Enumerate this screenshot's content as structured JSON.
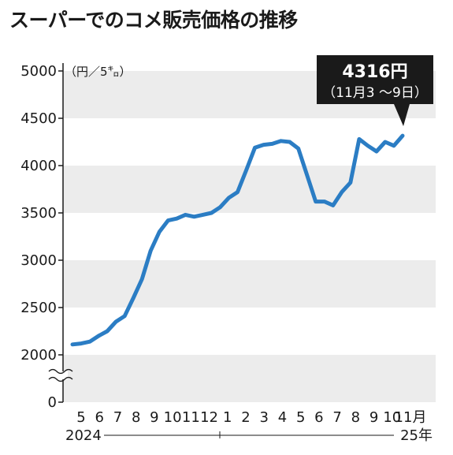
{
  "chart_data": {
    "type": "line",
    "title": "スーパーでのコメ販売価格の推移",
    "unit_label": "（円／5㌔）",
    "ylim": [
      0,
      5000
    ],
    "y_axis_break": true,
    "y_ticks": [
      "5000",
      "4500",
      "4000",
      "3500",
      "3000",
      "2500",
      "2000",
      "0"
    ],
    "x_tick_labels": [
      "5",
      "6",
      "7",
      "8",
      "9",
      "10",
      "11",
      "12",
      "1",
      "2",
      "3",
      "4",
      "5",
      "6",
      "7",
      "8",
      "9",
      "10",
      "11月"
    ],
    "year_labels": {
      "start": "2024",
      "end": "25年"
    },
    "grid": true,
    "line_color": "#2b7dc4",
    "band_color": "#ececec",
    "series": [
      {
        "values": [
          2110,
          2120,
          2140,
          2200,
          2250,
          2350,
          2410,
          2600,
          2800,
          3100,
          3300,
          3420,
          3440,
          3480,
          3460,
          3480,
          3500,
          3560,
          3660,
          3720,
          3950,
          4190,
          4220,
          4230,
          4260,
          4250,
          4180,
          3900,
          3620,
          3620,
          3580,
          3720,
          3820,
          4280,
          4210,
          4150,
          4250,
          4210,
          4316
        ]
      }
    ],
    "callout": {
      "value": "4316円",
      "period": "（11月3 〜9日）"
    }
  }
}
